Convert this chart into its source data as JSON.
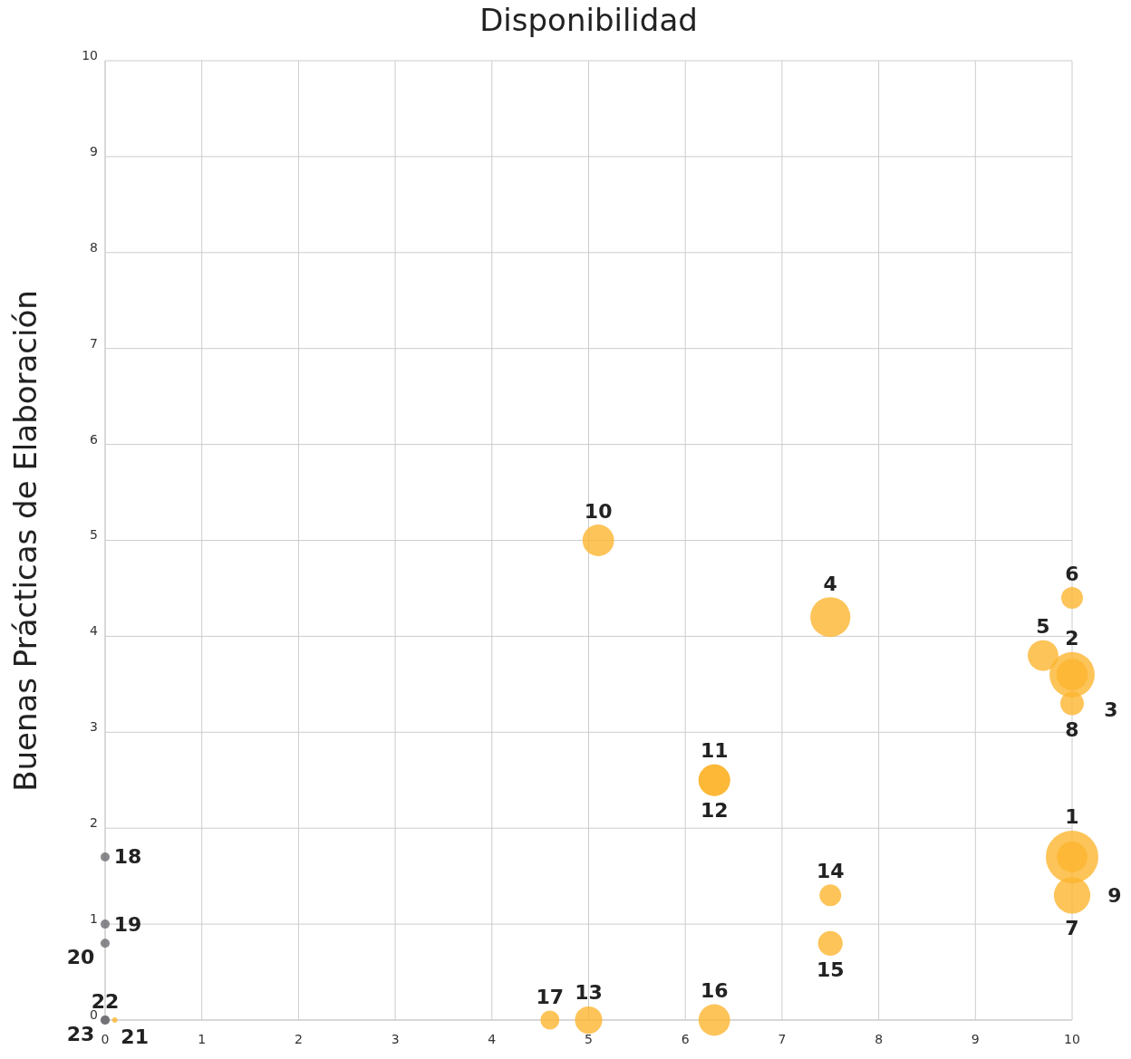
{
  "chart_data": {
    "type": "bubble",
    "title": "Disponibilidad",
    "ylabel": "Buenas Prácticas de Elaboración",
    "x": [
      10,
      10,
      10,
      7.5,
      9.7,
      10,
      10,
      10,
      10,
      5.1,
      6.3,
      6.3,
      5,
      7.5,
      7.5,
      6.3,
      4.6,
      0,
      0,
      0,
      0.1,
      0,
      0
    ],
    "values": [
      1.7,
      3.6,
      3.6,
      4.2,
      3.8,
      4.4,
      1.3,
      3.3,
      1.7,
      5,
      2.5,
      2.5,
      0,
      1.3,
      0.8,
      0,
      0,
      1.7,
      1,
      0.8,
      0,
      0,
      0
    ],
    "sizes": [
      1,
      0.36,
      0.74,
      0.58,
      0.34,
      0.17,
      0.48,
      0.2,
      0.34,
      0.36,
      0.36,
      0.36,
      0.27,
      0.17,
      0.22,
      0.36,
      0.13,
      0.03,
      0.03,
      0.03,
      0.01,
      0.03,
      0.03
    ],
    "colors": [
      "#fdb52f",
      "#fdb52f",
      "#fdb52f",
      "#fdb52f",
      "#fdb52f",
      "#fdb52f",
      "#fdb52f",
      "#fdb52f",
      "#fdb52f",
      "#fdb52f",
      "#fdb52f",
      "#fdb52f",
      "#fdb52f",
      "#fdb52f",
      "#fdb52f",
      "#fdb52f",
      "#fdb52f",
      "#6d6d72",
      "#6d6d72",
      "#6d6d72",
      "#fdb52f",
      "#6d6d72",
      "#6d6d72"
    ],
    "xlim": [
      0,
      10
    ],
    "ylim": [
      0,
      10
    ],
    "xticks": [
      0,
      1,
      2,
      3,
      4,
      5,
      6,
      7,
      8,
      9,
      10
    ],
    "yticks": [
      0,
      1,
      2,
      3,
      4,
      5,
      6,
      7,
      8,
      9,
      10
    ],
    "grid": true,
    "annotations": [
      {
        "text": "1",
        "x": 10,
        "y": 1.7
      },
      {
        "text": "2",
        "x": 10,
        "y": 3.6
      },
      {
        "text": "3",
        "x": 10,
        "y": 3.6
      },
      {
        "text": "4",
        "x": 7.5,
        "y": 4.2
      },
      {
        "text": "5",
        "x": 9.7,
        "y": 3.8
      },
      {
        "text": "6",
        "x": 10,
        "y": 4.4
      },
      {
        "text": "7",
        "x": 10,
        "y": 1.3
      },
      {
        "text": "8",
        "x": 10,
        "y": 3.3
      },
      {
        "text": "9",
        "x": 10,
        "y": 1.7
      },
      {
        "text": "10",
        "x": 5.1,
        "y": 5
      },
      {
        "text": "11",
        "x": 6.3,
        "y": 2.5
      },
      {
        "text": "12",
        "x": 6.3,
        "y": 2.5
      },
      {
        "text": "13",
        "x": 5,
        "y": 0
      },
      {
        "text": "14",
        "x": 7.5,
        "y": 1.3
      },
      {
        "text": "15",
        "x": 7.5,
        "y": 0.8
      },
      {
        "text": "16",
        "x": 6.3,
        "y": 0
      },
      {
        "text": "17",
        "x": 4.6,
        "y": 0
      },
      {
        "text": "18",
        "x": 0,
        "y": 1.7
      },
      {
        "text": "19",
        "x": 0,
        "y": 1
      },
      {
        "text": "20",
        "x": 0,
        "y": 0.8
      },
      {
        "text": "21",
        "x": 0.1,
        "y": 0
      },
      {
        "text": "22",
        "x": 0,
        "y": 0
      },
      {
        "text": "23",
        "x": 0,
        "y": 0
      }
    ]
  }
}
